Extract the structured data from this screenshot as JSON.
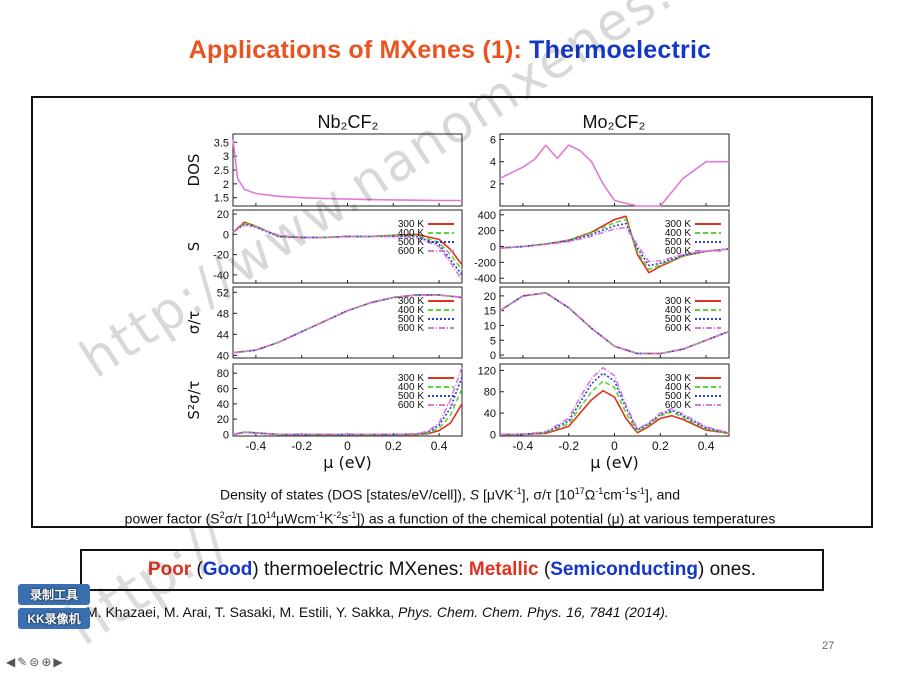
{
  "slide": {
    "title_part1": "Applications of MXenes (1): ",
    "title_part2": "Thermoelectric",
    "page_number": "27"
  },
  "figure": {
    "panel_titles": [
      "Nb2CF2",
      "Mo2CF2"
    ],
    "x_label": "μ (eV)",
    "y_labels": [
      "DOS",
      "S",
      "σ/τ",
      "S²σ/τ"
    ],
    "legend": [
      "300 K",
      "400 K",
      "500 K",
      "600 K"
    ]
  },
  "caption": {
    "line1_a": "Density of states (DOS [states/eV/cell]), ",
    "line1_s": "S",
    "line1_b": " [μVK",
    "line1_c": "], σ/τ [10",
    "line1_d": "Ω",
    "line1_e": "cm",
    "line1_f": "s",
    "line1_g": "], and",
    "line2_a": "power factor (S",
    "line2_b": "σ/τ [10",
    "line2_c": "μWcm",
    "line2_d": "K",
    "line2_e": "s",
    "line2_f": "]) as a function of the chemical potential (μ) at various temperatures"
  },
  "conclusion": {
    "poor": "Poor",
    "good": "Good",
    "mid": " thermoelectric MXenes: ",
    "metallic": "Metallic",
    "semiconducting": "Semiconducting",
    "end": " ones."
  },
  "reference": {
    "authors": "M. Khazaei, M. Arai, T. Sasaki, M. Estili, Y. Sakka, ",
    "journal": "Phys. Chem. Chem. Phys. 16, 7841 (2014)."
  },
  "overlay": {
    "watermark": "http://www.nanomxenes.com",
    "watermark2": "http://",
    "rec_line1": "录制工具",
    "rec_line2": "KK录像机"
  },
  "colors": {
    "title_red": "#e8531f",
    "title_blue": "#1437c9",
    "c300": "#e0321f",
    "c400": "#5bd63a",
    "c500": "#2a3fd6",
    "c600": "#d77ad9",
    "dos": "#e07ad8"
  },
  "chart_data": [
    {
      "type": "line",
      "panel": "Nb2CF2 DOS",
      "ylabel": "DOS",
      "yticks": [
        1.5,
        2,
        2.5,
        3,
        3.5
      ],
      "x": [
        -0.5,
        -0.48,
        -0.45,
        -0.4,
        -0.3,
        -0.2,
        -0.1,
        0,
        0.1,
        0.2,
        0.3,
        0.4,
        0.5
      ],
      "series": [
        {
          "values": [
            3.6,
            2.2,
            1.8,
            1.65,
            1.55,
            1.5,
            1.47,
            1.45,
            1.43,
            1.42,
            1.41,
            1.4,
            1.4
          ]
        }
      ]
    },
    {
      "type": "line",
      "panel": "Mo2CF2 DOS",
      "ylabel": "DOS",
      "yticks": [
        2,
        4,
        6
      ],
      "x": [
        -0.5,
        -0.4,
        -0.35,
        -0.3,
        -0.25,
        -0.2,
        -0.15,
        -0.1,
        -0.05,
        0,
        0.1,
        0.2,
        0.3,
        0.4,
        0.5
      ],
      "series": [
        {
          "values": [
            2.5,
            3.5,
            4.2,
            5.5,
            4.3,
            5.5,
            5.0,
            4.0,
            2.0,
            0.5,
            0,
            0,
            2.5,
            4.0,
            4.0
          ]
        }
      ]
    },
    {
      "type": "line",
      "panel": "Nb2CF2 S",
      "ylabel": "S",
      "yticks": [
        -40,
        -20,
        0,
        20
      ],
      "x": [
        -0.5,
        -0.45,
        -0.4,
        -0.3,
        -0.2,
        -0.1,
        0,
        0.1,
        0.2,
        0.3,
        0.4,
        0.45,
        0.5
      ],
      "series": [
        {
          "name": "300 K",
          "values": [
            2,
            12,
            8,
            -2,
            -3,
            -3,
            -2,
            -2,
            -1,
            0,
            -5,
            -15,
            -30
          ]
        },
        {
          "name": "400 K",
          "values": [
            2,
            11,
            8,
            -2,
            -3,
            -3,
            -2,
            -2,
            -1,
            -1,
            -8,
            -20,
            -35
          ]
        },
        {
          "name": "500 K",
          "values": [
            2,
            10,
            7,
            -2,
            -3,
            -3,
            -2,
            -2,
            -2,
            -2,
            -10,
            -25,
            -40
          ]
        },
        {
          "name": "600 K",
          "values": [
            2,
            9,
            7,
            -1,
            -3,
            -3,
            -2,
            -2,
            -2,
            -3,
            -12,
            -28,
            -45
          ]
        }
      ]
    },
    {
      "type": "line",
      "panel": "Mo2CF2 S",
      "ylabel": "S",
      "yticks": [
        -400,
        -200,
        0,
        200,
        400
      ],
      "x": [
        -0.5,
        -0.4,
        -0.3,
        -0.2,
        -0.1,
        0,
        0.05,
        0.1,
        0.15,
        0.2,
        0.3,
        0.4,
        0.5
      ],
      "series": [
        {
          "name": "300 K",
          "values": [
            -20,
            0,
            30,
            80,
            180,
            340,
            380,
            -100,
            -330,
            -250,
            -120,
            -60,
            -30
          ]
        },
        {
          "name": "400 K",
          "values": [
            -20,
            0,
            30,
            80,
            170,
            300,
            340,
            -60,
            -290,
            -230,
            -120,
            -60,
            -30
          ]
        },
        {
          "name": "500 K",
          "values": [
            -20,
            0,
            30,
            70,
            150,
            260,
            290,
            -20,
            -240,
            -210,
            -110,
            -60,
            -30
          ]
        },
        {
          "name": "600 K",
          "values": [
            -20,
            0,
            25,
            60,
            130,
            220,
            240,
            20,
            -190,
            -180,
            -100,
            -55,
            -30
          ]
        }
      ]
    },
    {
      "type": "line",
      "panel": "Nb2CF2 σ/τ",
      "ylabel": "σ/τ",
      "yticks": [
        40,
        44,
        48,
        52
      ],
      "x": [
        -0.5,
        -0.4,
        -0.3,
        -0.2,
        -0.1,
        0,
        0.1,
        0.2,
        0.3,
        0.4,
        0.5
      ],
      "series": [
        {
          "name": "300 K",
          "values": [
            40.5,
            41,
            42.5,
            44.5,
            46.5,
            48.5,
            50,
            51,
            51.5,
            51.5,
            51
          ]
        },
        {
          "name": "400 K",
          "values": [
            40.5,
            41,
            42.5,
            44.5,
            46.5,
            48.5,
            50,
            51,
            51.5,
            51.5,
            51
          ]
        },
        {
          "name": "500 K",
          "values": [
            40.5,
            41,
            42.5,
            44.5,
            46.5,
            48.5,
            50,
            51,
            51.5,
            51.5,
            51
          ]
        },
        {
          "name": "600 K",
          "values": [
            40.5,
            41,
            42.5,
            44.5,
            46.5,
            48.5,
            50,
            51,
            51.5,
            51.5,
            51
          ]
        }
      ]
    },
    {
      "type": "line",
      "panel": "Mo2CF2 σ/τ",
      "ylabel": "σ/τ",
      "yticks": [
        0,
        5,
        10,
        15,
        20
      ],
      "x": [
        -0.5,
        -0.4,
        -0.3,
        -0.2,
        -0.1,
        0,
        0.1,
        0.2,
        0.3,
        0.4,
        0.5
      ],
      "series": [
        {
          "name": "300 K",
          "values": [
            15,
            20,
            21,
            16,
            9,
            3,
            0.5,
            0.5,
            2,
            5,
            8
          ]
        },
        {
          "name": "400 K",
          "values": [
            15,
            20,
            21,
            16,
            9,
            3,
            0.5,
            0.5,
            2,
            5,
            8
          ]
        },
        {
          "name": "500 K",
          "values": [
            15,
            20,
            21,
            16,
            9,
            3,
            0.5,
            0.5,
            2,
            5,
            8
          ]
        },
        {
          "name": "600 K",
          "values": [
            15,
            20,
            21,
            16,
            9,
            3,
            0.5,
            0.5,
            2,
            5,
            8
          ]
        }
      ]
    },
    {
      "type": "line",
      "panel": "Nb2CF2 S²σ/τ",
      "ylabel": "S²σ/τ",
      "xlabel": "μ (eV)",
      "xticks": [
        -0.4,
        -0.2,
        0,
        0.2,
        0.4
      ],
      "yticks": [
        0,
        20,
        40,
        60,
        80
      ],
      "x": [
        -0.5,
        -0.45,
        -0.4,
        -0.3,
        -0.2,
        -0.1,
        0,
        0.1,
        0.2,
        0.3,
        0.35,
        0.4,
        0.45,
        0.5
      ],
      "series": [
        {
          "name": "300 K",
          "values": [
            0,
            3,
            2,
            0,
            0,
            0,
            0,
            0,
            0,
            0,
            1,
            5,
            15,
            40
          ]
        },
        {
          "name": "400 K",
          "values": [
            0,
            3,
            2,
            0,
            0,
            0,
            0,
            0,
            0,
            0,
            2,
            8,
            25,
            60
          ]
        },
        {
          "name": "500 K",
          "values": [
            0,
            3,
            2,
            0,
            0,
            0,
            0,
            0,
            0,
            1,
            3,
            12,
            35,
            75
          ]
        },
        {
          "name": "600 K",
          "values": [
            0,
            3,
            2,
            0,
            0,
            0,
            0,
            0,
            0,
            1,
            4,
            15,
            45,
            88
          ]
        }
      ]
    },
    {
      "type": "line",
      "panel": "Mo2CF2 S²σ/τ",
      "ylabel": "S²σ/τ",
      "xlabel": "μ (eV)",
      "xticks": [
        -0.4,
        -0.2,
        0,
        0.2,
        0.4
      ],
      "yticks": [
        0,
        40,
        80,
        120
      ],
      "x": [
        -0.5,
        -0.4,
        -0.3,
        -0.2,
        -0.15,
        -0.1,
        -0.05,
        0,
        0.05,
        0.1,
        0.15,
        0.2,
        0.25,
        0.3,
        0.4,
        0.5
      ],
      "series": [
        {
          "name": "300 K",
          "values": [
            0,
            0,
            2,
            15,
            40,
            65,
            82,
            70,
            30,
            3,
            15,
            30,
            35,
            28,
            8,
            2
          ]
        },
        {
          "name": "400 K",
          "values": [
            0,
            0,
            3,
            20,
            50,
            80,
            100,
            88,
            40,
            5,
            18,
            35,
            42,
            32,
            10,
            2
          ]
        },
        {
          "name": "500 K",
          "values": [
            0,
            0,
            4,
            25,
            60,
            95,
            115,
            100,
            50,
            8,
            20,
            38,
            45,
            35,
            12,
            3
          ]
        },
        {
          "name": "600 K",
          "values": [
            0,
            0,
            5,
            30,
            70,
            105,
            125,
            110,
            55,
            10,
            22,
            40,
            48,
            38,
            14,
            3
          ]
        }
      ]
    }
  ]
}
